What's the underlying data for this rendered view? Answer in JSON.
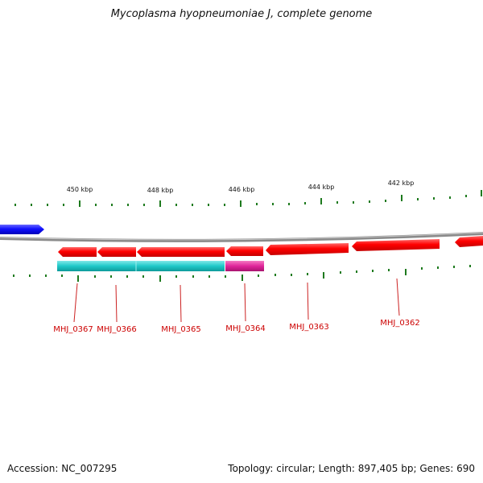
{
  "title": "Mycoplasma hyopneumoniae J, complete genome",
  "footer": {
    "accession": "Accession: NC_007295",
    "summary": "Topology: circular; Length: 897,405 bp; Genes: 690"
  },
  "scale_labels": [
    "450 kbp",
    "448 kbp",
    "446 kbp",
    "444 kbp",
    "442 kbp"
  ],
  "genes": [
    {
      "label": "MHJ_0367"
    },
    {
      "label": "MHJ_0366"
    },
    {
      "label": "MHJ_0365"
    },
    {
      "label": "MHJ_0364"
    },
    {
      "label": "MHJ_0363"
    },
    {
      "label": "MHJ_0362"
    }
  ],
  "colors": {
    "forward_gene": "#1a1aff",
    "reverse_gene": "#ff0000",
    "cog_cyan": "#1ec8c8",
    "cog_magenta": "#e0259a",
    "backbone": "#808080",
    "ticks": "#1e7a1e",
    "labels": "#cc0000"
  }
}
